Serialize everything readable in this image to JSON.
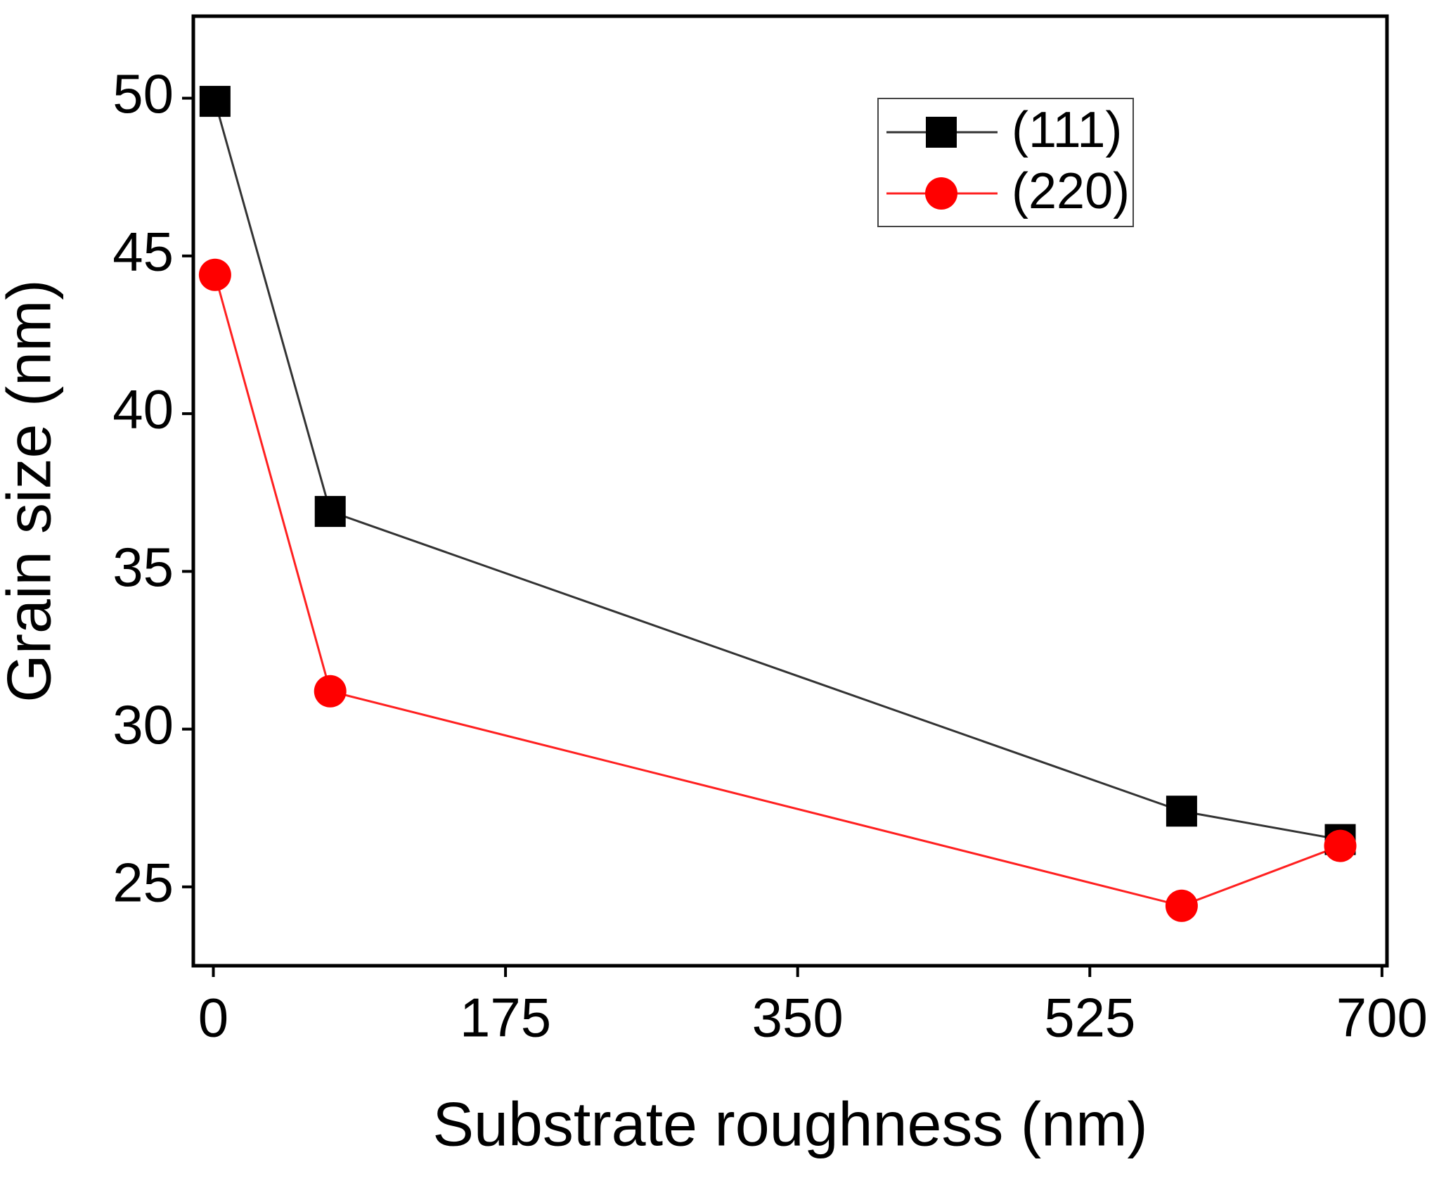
{
  "chart_data": {
    "type": "line",
    "xlabel": "Substrate roughness (nm)",
    "ylabel": "Grain size (nm)",
    "x": [
      1,
      70,
      580,
      675
    ],
    "series": [
      {
        "name": "(111)",
        "color": "#000000",
        "line_color": "#333333",
        "marker": "square",
        "values": [
          49.9,
          36.9,
          27.4,
          26.5
        ]
      },
      {
        "name": "(220)",
        "color": "#ff0000",
        "line_color": "#ff2020",
        "marker": "circle",
        "values": [
          44.4,
          31.2,
          24.4,
          26.3
        ]
      }
    ],
    "xlim": [
      -12,
      703
    ],
    "xticks": [
      0,
      175,
      350,
      525,
      700
    ],
    "ylim": [
      22.5,
      52.6
    ],
    "yticks": [
      25,
      30,
      35,
      40,
      45,
      50
    ],
    "grid": false,
    "legend": "upper right"
  }
}
